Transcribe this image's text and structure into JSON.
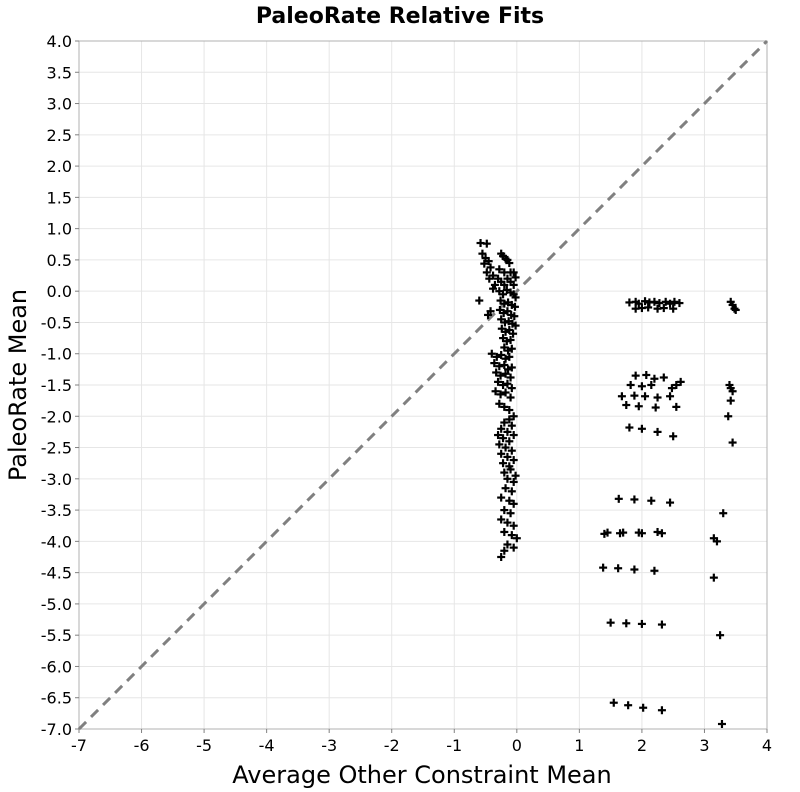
{
  "chart_data": {
    "type": "scatter",
    "title": "PaleoRate Relative Fits",
    "xlabel": "Average Other Constraint Mean",
    "ylabel": "PaleoRate Mean",
    "xlim": [
      -7,
      4
    ],
    "ylim": [
      -7,
      4
    ],
    "x_ticks": [
      "-7",
      "-6",
      "-5",
      "-4",
      "-3",
      "-2",
      "-1",
      "0",
      "1",
      "2",
      "3",
      "4"
    ],
    "y_ticks": [
      "4.0",
      "3.5",
      "3.0",
      "2.5",
      "2.0",
      "1.5",
      "1.0",
      "0.5",
      "0.0",
      "-0.5",
      "-1.0",
      "-1.5",
      "-2.0",
      "-2.5",
      "-3.0",
      "-3.5",
      "-4.0",
      "-4.5",
      "-5.0",
      "-5.5",
      "-6.0",
      "-6.5",
      "-7.0"
    ],
    "reference_line": {
      "style": "dashed",
      "color": "#808080",
      "from": [
        -7,
        -7
      ],
      "to": [
        4,
        4
      ]
    },
    "grid": true,
    "marker": "plus",
    "marker_color": "#000000",
    "series": [
      {
        "points": [
          [
            -0.58,
            0.77
          ],
          [
            -0.48,
            0.76
          ],
          [
            -0.55,
            0.6
          ],
          [
            -0.5,
            0.53
          ],
          [
            -0.45,
            0.48
          ],
          [
            -0.52,
            0.44
          ],
          [
            -0.42,
            0.38
          ],
          [
            -0.48,
            0.3
          ],
          [
            -0.38,
            0.25
          ],
          [
            -0.44,
            0.2
          ],
          [
            -0.35,
            0.1
          ],
          [
            -0.6,
            -0.15
          ],
          [
            -0.42,
            -0.32
          ],
          [
            -0.46,
            -0.38
          ],
          [
            -0.38,
            0.04
          ],
          [
            -0.25,
            0.6
          ],
          [
            -0.22,
            0.56
          ],
          [
            -0.18,
            0.52
          ],
          [
            -0.15,
            0.5
          ],
          [
            -0.12,
            0.45
          ],
          [
            -0.28,
            0.35
          ],
          [
            -0.2,
            0.3
          ],
          [
            -0.1,
            0.3
          ],
          [
            -0.05,
            0.3
          ],
          [
            -0.3,
            0.2
          ],
          [
            -0.25,
            0.15
          ],
          [
            -0.2,
            0.1
          ],
          [
            -0.15,
            0.2
          ],
          [
            -0.1,
            0.15
          ],
          [
            -0.05,
            0.1
          ],
          [
            -0.02,
            0.22
          ],
          [
            -0.28,
            0.0
          ],
          [
            -0.22,
            -0.05
          ],
          [
            -0.16,
            0.02
          ],
          [
            -0.1,
            -0.02
          ],
          [
            -0.05,
            -0.05
          ],
          [
            -0.02,
            -0.1
          ],
          [
            -0.26,
            -0.15
          ],
          [
            -0.2,
            -0.2
          ],
          [
            -0.14,
            -0.18
          ],
          [
            -0.08,
            -0.22
          ],
          [
            -0.03,
            -0.25
          ],
          [
            -0.27,
            -0.3
          ],
          [
            -0.21,
            -0.35
          ],
          [
            -0.15,
            -0.32
          ],
          [
            -0.09,
            -0.38
          ],
          [
            -0.04,
            -0.4
          ],
          [
            -0.25,
            -0.45
          ],
          [
            -0.19,
            -0.5
          ],
          [
            -0.13,
            -0.48
          ],
          [
            -0.07,
            -0.52
          ],
          [
            -0.02,
            -0.55
          ],
          [
            -0.24,
            -0.6
          ],
          [
            -0.18,
            -0.65
          ],
          [
            -0.12,
            -0.62
          ],
          [
            -0.06,
            -0.68
          ],
          [
            -0.22,
            -0.75
          ],
          [
            -0.16,
            -0.8
          ],
          [
            -0.1,
            -0.78
          ],
          [
            -0.2,
            -0.9
          ],
          [
            -0.14,
            -0.95
          ],
          [
            -0.08,
            -0.92
          ],
          [
            -0.4,
            -1.0
          ],
          [
            -0.32,
            -1.05
          ],
          [
            -0.25,
            -1.02
          ],
          [
            -0.18,
            -1.08
          ],
          [
            -0.12,
            -1.05
          ],
          [
            -0.36,
            -1.15
          ],
          [
            -0.28,
            -1.2
          ],
          [
            -0.2,
            -1.18
          ],
          [
            -0.14,
            -1.25
          ],
          [
            -0.08,
            -1.22
          ],
          [
            -0.33,
            -1.3
          ],
          [
            -0.26,
            -1.35
          ],
          [
            -0.18,
            -1.32
          ],
          [
            -0.1,
            -1.38
          ],
          [
            -0.3,
            -1.45
          ],
          [
            -0.22,
            -1.5
          ],
          [
            -0.15,
            -1.48
          ],
          [
            -0.08,
            -1.55
          ],
          [
            -0.34,
            -1.6
          ],
          [
            -0.26,
            -1.65
          ],
          [
            -0.18,
            -1.62
          ],
          [
            -0.1,
            -1.7
          ],
          [
            -0.28,
            -1.8
          ],
          [
            -0.2,
            -1.85
          ],
          [
            -0.12,
            -1.9
          ],
          [
            -0.05,
            -2.0
          ],
          [
            -0.12,
            -2.05
          ],
          [
            -0.2,
            -2.1
          ],
          [
            -0.08,
            -2.15
          ],
          [
            -0.25,
            -2.2
          ],
          [
            -0.15,
            -2.25
          ],
          [
            -0.05,
            -2.3
          ],
          [
            -0.3,
            -2.3
          ],
          [
            -0.22,
            -2.35
          ],
          [
            -0.12,
            -2.4
          ],
          [
            -0.28,
            -2.45
          ],
          [
            -0.18,
            -2.5
          ],
          [
            -0.08,
            -2.55
          ],
          [
            -0.25,
            -2.6
          ],
          [
            -0.15,
            -2.65
          ],
          [
            -0.05,
            -2.7
          ],
          [
            -0.22,
            -2.75
          ],
          [
            -0.12,
            -2.8
          ],
          [
            -0.2,
            -2.9
          ],
          [
            -0.1,
            -2.85
          ],
          [
            -0.02,
            -2.95
          ],
          [
            -0.15,
            -3.0
          ],
          [
            -0.05,
            -3.05
          ],
          [
            -0.18,
            -3.15
          ],
          [
            -0.08,
            -3.2
          ],
          [
            -0.25,
            -3.3
          ],
          [
            -0.12,
            -3.35
          ],
          [
            -0.05,
            -3.4
          ],
          [
            -0.2,
            -3.5
          ],
          [
            -0.1,
            -3.55
          ],
          [
            -0.25,
            -3.65
          ],
          [
            -0.15,
            -3.7
          ],
          [
            -0.05,
            -3.75
          ],
          [
            -0.2,
            -3.85
          ],
          [
            -0.08,
            -3.9
          ],
          [
            0.0,
            -3.95
          ],
          [
            -0.15,
            -4.05
          ],
          [
            -0.05,
            -4.1
          ],
          [
            -0.2,
            -4.15
          ],
          [
            -0.25,
            -4.25
          ],
          [
            1.8,
            -0.18
          ],
          [
            1.9,
            -0.17
          ],
          [
            1.95,
            -0.2
          ],
          [
            2.05,
            -0.16
          ],
          [
            2.12,
            -0.18
          ],
          [
            2.2,
            -0.17
          ],
          [
            2.28,
            -0.19
          ],
          [
            2.38,
            -0.17
          ],
          [
            2.45,
            -0.2
          ],
          [
            2.52,
            -0.17
          ],
          [
            2.6,
            -0.19
          ],
          [
            1.9,
            -0.28
          ],
          [
            2.0,
            -0.27
          ],
          [
            2.1,
            -0.26
          ],
          [
            2.25,
            -0.28
          ],
          [
            2.35,
            -0.27
          ],
          [
            2.5,
            -0.28
          ],
          [
            3.42,
            -0.17
          ],
          [
            3.45,
            -0.22
          ],
          [
            3.48,
            -0.28
          ],
          [
            3.5,
            -0.3
          ],
          [
            1.9,
            -1.35
          ],
          [
            2.07,
            -1.34
          ],
          [
            2.2,
            -1.4
          ],
          [
            2.35,
            -1.38
          ],
          [
            1.82,
            -1.5
          ],
          [
            2.0,
            -1.52
          ],
          [
            2.15,
            -1.5
          ],
          [
            2.48,
            -1.55
          ],
          [
            2.55,
            -1.5
          ],
          [
            2.62,
            -1.45
          ],
          [
            1.68,
            -1.68
          ],
          [
            1.88,
            -1.67
          ],
          [
            2.05,
            -1.68
          ],
          [
            2.25,
            -1.7
          ],
          [
            2.45,
            -1.68
          ],
          [
            1.75,
            -1.82
          ],
          [
            1.95,
            -1.84
          ],
          [
            2.22,
            -1.86
          ],
          [
            2.55,
            -1.85
          ],
          [
            3.4,
            -1.5
          ],
          [
            3.42,
            -1.55
          ],
          [
            3.45,
            -1.6
          ],
          [
            3.42,
            -1.75
          ],
          [
            3.38,
            -2.0
          ],
          [
            1.8,
            -2.18
          ],
          [
            2.0,
            -2.2
          ],
          [
            2.25,
            -2.25
          ],
          [
            2.5,
            -2.32
          ],
          [
            3.45,
            -2.42
          ],
          [
            1.63,
            -3.32
          ],
          [
            1.88,
            -3.33
          ],
          [
            2.15,
            -3.35
          ],
          [
            2.45,
            -3.38
          ],
          [
            3.3,
            -3.55
          ],
          [
            1.4,
            -3.88
          ],
          [
            1.45,
            -3.86
          ],
          [
            1.65,
            -3.87
          ],
          [
            1.7,
            -3.86
          ],
          [
            1.95,
            -3.86
          ],
          [
            2.0,
            -3.87
          ],
          [
            2.25,
            -3.85
          ],
          [
            2.32,
            -3.87
          ],
          [
            3.15,
            -3.95
          ],
          [
            3.2,
            -4.0
          ],
          [
            1.38,
            -4.42
          ],
          [
            1.62,
            -4.43
          ],
          [
            1.88,
            -4.45
          ],
          [
            2.2,
            -4.47
          ],
          [
            3.15,
            -4.58
          ],
          [
            1.5,
            -5.3
          ],
          [
            1.75,
            -5.31
          ],
          [
            2.0,
            -5.32
          ],
          [
            2.32,
            -5.33
          ],
          [
            3.25,
            -5.5
          ],
          [
            1.55,
            -6.58
          ],
          [
            1.78,
            -6.62
          ],
          [
            2.02,
            -6.66
          ],
          [
            2.32,
            -6.7
          ],
          [
            3.28,
            -6.92
          ]
        ]
      }
    ]
  }
}
